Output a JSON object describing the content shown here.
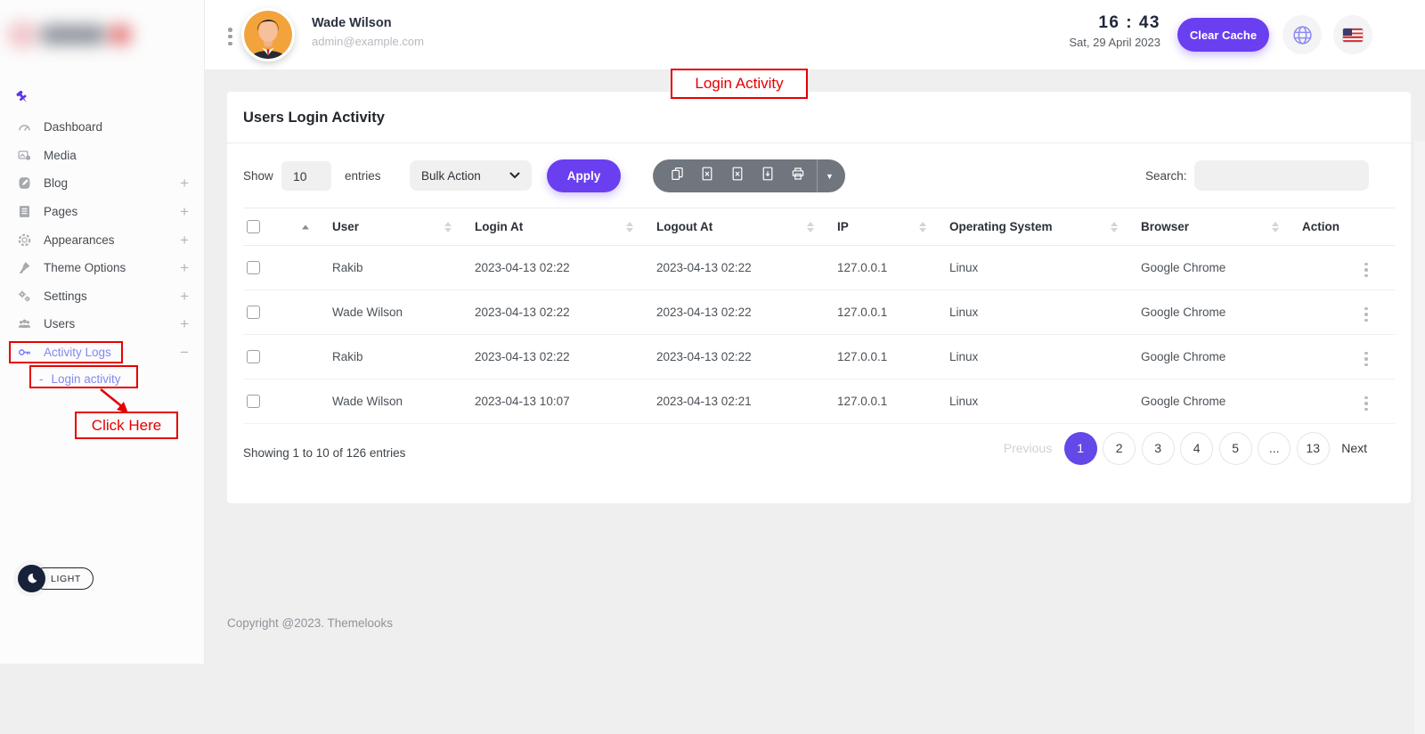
{
  "colors": {
    "accent": "#6a3ff0",
    "accent2": "#6448e8",
    "red": "#e60000",
    "sidebar_active": "#8489f0",
    "export_bar_bg": "#70767d",
    "avatar_bg": "#f2a33c"
  },
  "header": {
    "user_name": "Wade Wilson",
    "user_email": "admin@example.com",
    "time": "16 : 43",
    "date": "Sat, 29 April 2023",
    "clear_cache_label": "Clear Cache",
    "icons": [
      "kebab-menu-icon",
      "avatar",
      "globe-icon",
      "us-flag-icon"
    ]
  },
  "sidebar": {
    "pin_icon": "pushpin-icon",
    "items": [
      {
        "icon": "dashboard",
        "label": "Dashboard",
        "suffix": null,
        "active": false
      },
      {
        "icon": "media",
        "label": "Media",
        "suffix": null,
        "active": false
      },
      {
        "icon": "blog",
        "label": "Blog",
        "suffix": "plus",
        "active": false
      },
      {
        "icon": "pages",
        "label": "Pages",
        "suffix": "plus",
        "active": false
      },
      {
        "icon": "appearances",
        "label": "Appearances",
        "suffix": "plus",
        "active": false
      },
      {
        "icon": "theme-options",
        "label": "Theme Options",
        "suffix": "plus",
        "active": false
      },
      {
        "icon": "settings",
        "label": "Settings",
        "suffix": "plus",
        "active": false
      },
      {
        "icon": "users",
        "label": "Users",
        "suffix": "plus",
        "active": false
      },
      {
        "icon": "key",
        "label": "Activity Logs",
        "suffix": "minus",
        "active": true
      }
    ],
    "sub_item": {
      "prefix": "-",
      "label": "Login activity",
      "active": true
    },
    "theme_toggle_label": "LIGHT"
  },
  "annotations": {
    "login_activity": "Login Activity",
    "click_here": "Click Here"
  },
  "card": {
    "title": "Users Login Activity",
    "show_label": "Show",
    "entries_value": "10",
    "entries_label": "entries",
    "bulk_action_label": "Bulk Action",
    "apply_label": "Apply",
    "export_buttons": [
      "copy",
      "excel",
      "csv",
      "pdf",
      "print"
    ],
    "export_caret": "▼",
    "search_label": "Search:",
    "table": {
      "columns": [
        "User",
        "Login At",
        "Logout At",
        "IP",
        "Operating System",
        "Browser",
        "Action"
      ],
      "rows": [
        {
          "user": "Rakib",
          "login_at": "2023-04-13 02:22",
          "logout_at": "2023-04-13 02:22",
          "ip": "127.0.0.1",
          "operating_system": "Linux",
          "browser": "Google Chrome"
        },
        {
          "user": "Wade Wilson",
          "login_at": "2023-04-13 02:22",
          "logout_at": "2023-04-13 02:22",
          "ip": "127.0.0.1",
          "operating_system": "Linux",
          "browser": "Google Chrome"
        },
        {
          "user": "Rakib",
          "login_at": "2023-04-13 02:22",
          "logout_at": "2023-04-13 02:22",
          "ip": "127.0.0.1",
          "operating_system": "Linux",
          "browser": "Google Chrome"
        },
        {
          "user": "Wade Wilson",
          "login_at": "2023-04-13 10:07",
          "logout_at": "2023-04-13 02:21",
          "ip": "127.0.0.1",
          "operating_system": "Linux",
          "browser": "Google Chrome"
        }
      ]
    },
    "showing_text": "Showing 1 to 10 of 126 entries",
    "pagination": {
      "previous": "Previous",
      "pages": [
        "1",
        "2",
        "3",
        "4",
        "5",
        "...",
        "13"
      ],
      "active_page": "1",
      "next": "Next"
    }
  },
  "footer": {
    "copyright": "Copyright @2023. Themelooks"
  }
}
